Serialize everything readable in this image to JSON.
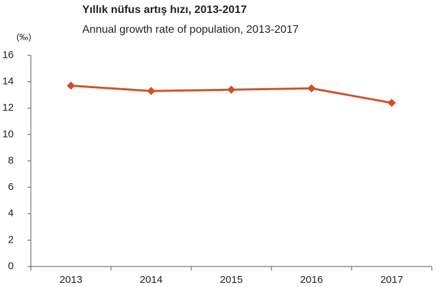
{
  "chart_data": {
    "type": "line",
    "title": "Yıllık nüfus artış hızı, 2013-2017",
    "subtitle": "Annual growth rate of population, 2013-2017",
    "y_label": "(‰)",
    "categories": [
      "2013",
      "2014",
      "2015",
      "2016",
      "2017"
    ],
    "series": [
      {
        "name": "Annual growth rate of population",
        "color": "#d0502a",
        "values": [
          13.7,
          13.3,
          13.4,
          13.5,
          12.4
        ]
      }
    ],
    "ylim": [
      0,
      16
    ],
    "yticks": [
      0,
      2,
      4,
      6,
      8,
      10,
      12,
      14,
      16
    ],
    "grid": false
  }
}
